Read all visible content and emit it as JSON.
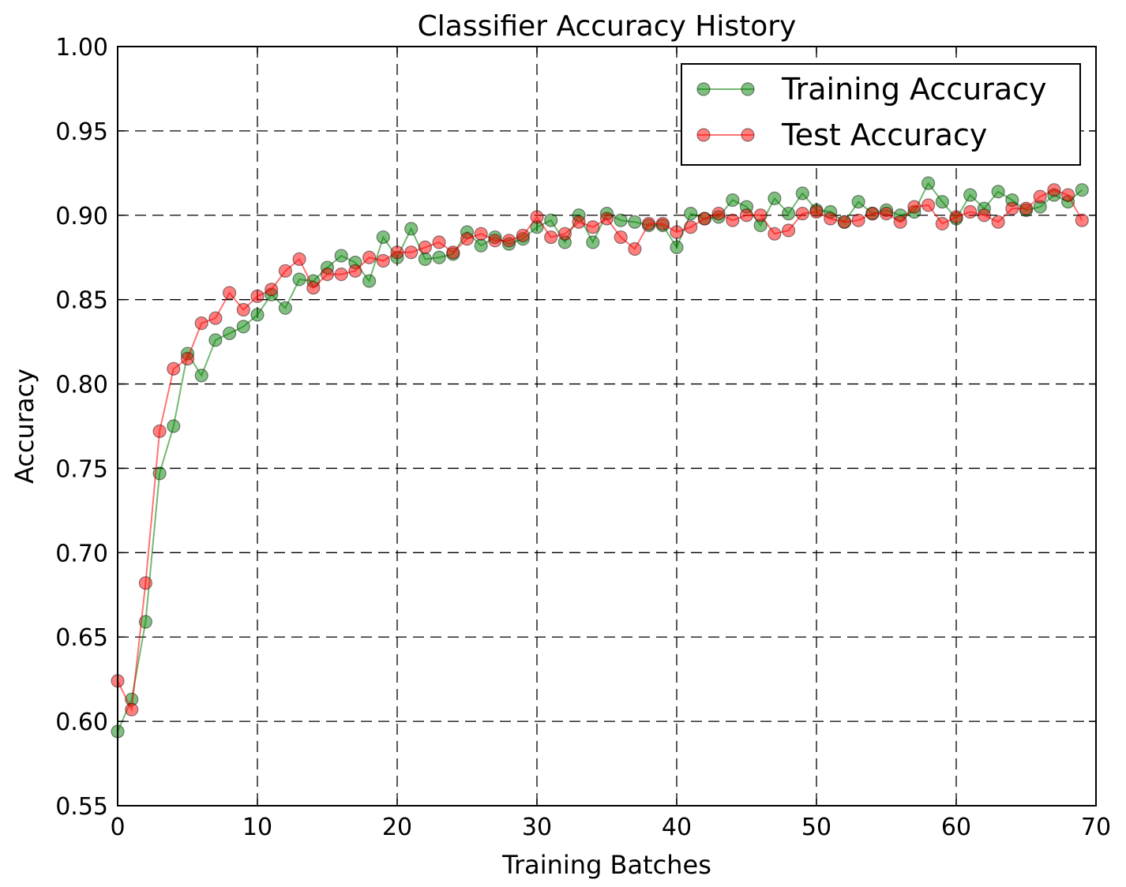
{
  "chart_data": {
    "type": "line",
    "title": "Classifier Accuracy History",
    "xlabel": "Training Batches",
    "ylabel": "Accuracy",
    "xlim": [
      0,
      70
    ],
    "ylim": [
      0.55,
      1.0
    ],
    "x_ticks": [
      0,
      10,
      20,
      30,
      40,
      50,
      60,
      70
    ],
    "y_ticks": [
      0.55,
      0.6,
      0.65,
      0.7,
      0.75,
      0.8,
      0.85,
      0.9,
      0.95,
      1.0
    ],
    "x_tick_labels": [
      "0",
      "10",
      "20",
      "30",
      "40",
      "50",
      "60",
      "70"
    ],
    "y_tick_labels": [
      "0.55",
      "0.60",
      "0.65",
      "0.70",
      "0.75",
      "0.80",
      "0.85",
      "0.90",
      "0.95",
      "1.00"
    ],
    "grid": true,
    "legend_position": "top-right",
    "series": [
      {
        "name": "Training Accuracy",
        "color": "#008000",
        "values": [
          0.594,
          0.613,
          0.659,
          0.747,
          0.775,
          0.818,
          0.805,
          0.826,
          0.83,
          0.834,
          0.841,
          0.853,
          0.845,
          0.862,
          0.861,
          0.869,
          0.876,
          0.872,
          0.861,
          0.887,
          0.875,
          0.892,
          0.874,
          0.875,
          0.877,
          0.89,
          0.882,
          0.887,
          0.883,
          0.886,
          0.893,
          0.897,
          0.884,
          0.9,
          0.884,
          0.901,
          0.897,
          0.896,
          0.894,
          0.894,
          0.881,
          0.901,
          0.898,
          0.899,
          0.909,
          0.905,
          0.894,
          0.91,
          0.901,
          0.913,
          0.903,
          0.902,
          0.896,
          0.908,
          0.901,
          0.903,
          0.9,
          0.902,
          0.919,
          0.908,
          0.898,
          0.912,
          0.904,
          0.914,
          0.909,
          0.903,
          0.905,
          0.912,
          0.908,
          0.915
        ]
      },
      {
        "name": "Test Accuracy",
        "color": "#ff0000",
        "values": [
          0.624,
          0.607,
          0.682,
          0.772,
          0.809,
          0.815,
          0.836,
          0.839,
          0.854,
          0.844,
          0.852,
          0.856,
          0.867,
          0.874,
          0.857,
          0.865,
          0.865,
          0.867,
          0.875,
          0.873,
          0.878,
          0.878,
          0.881,
          0.884,
          0.878,
          0.886,
          0.889,
          0.885,
          0.885,
          0.888,
          0.899,
          0.887,
          0.889,
          0.896,
          0.893,
          0.898,
          0.887,
          0.88,
          0.895,
          0.895,
          0.89,
          0.893,
          0.898,
          0.901,
          0.897,
          0.9,
          0.9,
          0.889,
          0.891,
          0.901,
          0.902,
          0.898,
          0.896,
          0.897,
          0.901,
          0.901,
          0.896,
          0.905,
          0.906,
          0.895,
          0.899,
          0.902,
          0.9,
          0.896,
          0.904,
          0.904,
          0.911,
          0.915,
          0.912,
          0.897
        ]
      }
    ]
  }
}
